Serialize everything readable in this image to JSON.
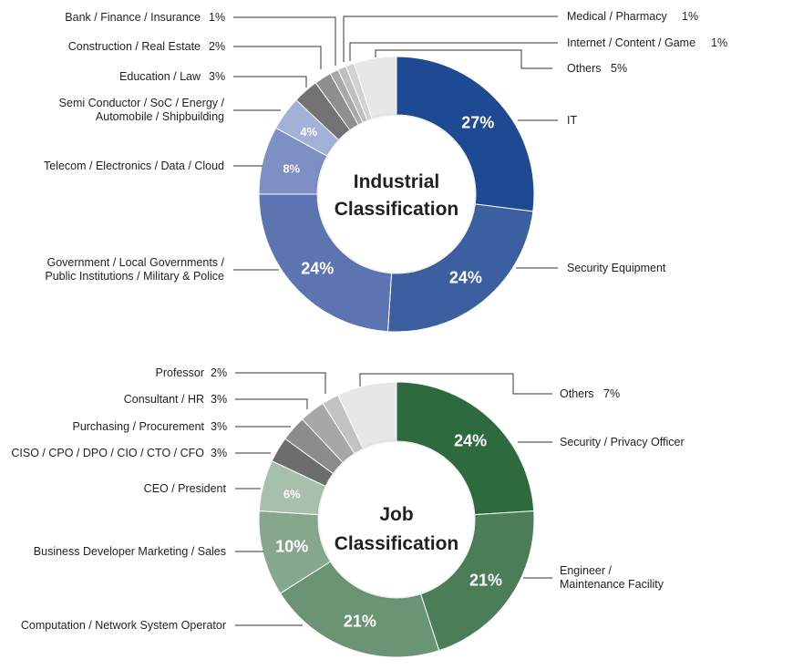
{
  "chart_data": [
    {
      "type": "pie",
      "title": "Industrial Classification",
      "title_lines": [
        "Industrial",
        "Classification"
      ],
      "slices": [
        {
          "label": "IT",
          "value": 27,
          "color": "#1d4a92",
          "label_text": "27%"
        },
        {
          "label": "Security Equipment",
          "value": 24,
          "color": "#3c5fa0",
          "label_text": "24%"
        },
        {
          "label": "Government / Local Governments / Public Institutions / Military & Police",
          "value": 24,
          "color": "#5c74b2",
          "label_text": "24%"
        },
        {
          "label": "Telecom / Electronics / Data / Cloud",
          "value": 8,
          "color": "#7d8fc3",
          "label_text": "8%"
        },
        {
          "label": "Semi Conductor / SoC / Energy / Automobile / Shipbuilding",
          "value": 4,
          "color": "#a3b1d8",
          "label_text": "4%"
        },
        {
          "label": "Education / Law",
          "value": 3,
          "color": "#717374",
          "label_text": ""
        },
        {
          "label": "Construction / Real Estate",
          "value": 2,
          "color": "#8d8f91",
          "label_text": ""
        },
        {
          "label": "Bank / Finance / Insurance",
          "value": 1,
          "color": "#a7a9ab",
          "label_text": ""
        },
        {
          "label": "Medical / Pharmacy",
          "value": 1,
          "color": "#bdbfc1",
          "label_text": ""
        },
        {
          "label": "Internet / Content / Game",
          "value": 1,
          "color": "#d0d2d3",
          "label_text": ""
        },
        {
          "label": "Others",
          "value": 5,
          "color": "#e6e7e8",
          "label_text": ""
        }
      ],
      "callouts": [
        {
          "name": "Bank / Finance / Insurance",
          "pct": "1%"
        },
        {
          "name": "Construction / Real Estate",
          "pct": "2%"
        },
        {
          "name": "Education / Law",
          "pct": "3%"
        },
        {
          "name1": "Semi Conductor / SoC / Energy /",
          "name2": "Automobile / Shipbuilding"
        },
        {
          "name": "Telecom / Electronics / Data / Cloud"
        },
        {
          "name1": "Government /  Local Governments /",
          "name2": "Public Institutions /  Military & Police"
        },
        {
          "name": "Medical / Pharmacy",
          "pct": "1%"
        },
        {
          "name": "Internet / Content / Game",
          "pct": "1%"
        },
        {
          "name": "Others",
          "pct": "5%"
        },
        {
          "name": "IT"
        },
        {
          "name": "Security Equipment"
        }
      ]
    },
    {
      "type": "pie",
      "title": "Job Classification",
      "title_lines": [
        "Job",
        "Classification"
      ],
      "slices": [
        {
          "label": "Security / Privacy Officer",
          "value": 24,
          "color": "#2d6b3f",
          "label_text": "24%"
        },
        {
          "label": "Engineer / Maintenance Facility",
          "value": 21,
          "color": "#4a7d58",
          "label_text": "21%"
        },
        {
          "label": "Computation / Network System Operator",
          "value": 21,
          "color": "#6a9474",
          "label_text": "21%"
        },
        {
          "label": "Business Developer Marketing / Sales",
          "value": 10,
          "color": "#86a78d",
          "label_text": "10%"
        },
        {
          "label": "CEO / President",
          "value": 6,
          "color": "#a8c0ab",
          "label_text": "6%"
        },
        {
          "label": "CISO / CPO / DPO / CIO / CTO / CFO",
          "value": 3,
          "color": "#6b6d6f",
          "label_text": ""
        },
        {
          "label": "Purchasing / Procurement",
          "value": 3,
          "color": "#8a8c8e",
          "label_text": ""
        },
        {
          "label": "Consultant / HR",
          "value": 3,
          "color": "#a5a7a9",
          "label_text": ""
        },
        {
          "label": "Professor",
          "value": 2,
          "color": "#c0c2c4",
          "label_text": ""
        },
        {
          "label": "Others",
          "value": 7,
          "color": "#e6e7e8",
          "label_text": ""
        }
      ],
      "callouts": [
        {
          "name": "Professor",
          "pct": "2%"
        },
        {
          "name": "Consultant / HR",
          "pct": "3%"
        },
        {
          "name": "Purchasing / Procurement",
          "pct": "3%"
        },
        {
          "name": "CISO / CPO / DPO / CIO / CTO / CFO",
          "pct": "3%"
        },
        {
          "name": "CEO / President"
        },
        {
          "name": "Business Developer Marketing / Sales"
        },
        {
          "name": "Computation / Network System Operator"
        },
        {
          "name": "Others",
          "pct": "7%"
        },
        {
          "name": "Security / Privacy Officer"
        },
        {
          "name1": "Engineer /",
          "name2": "Maintenance Facility"
        }
      ]
    }
  ]
}
